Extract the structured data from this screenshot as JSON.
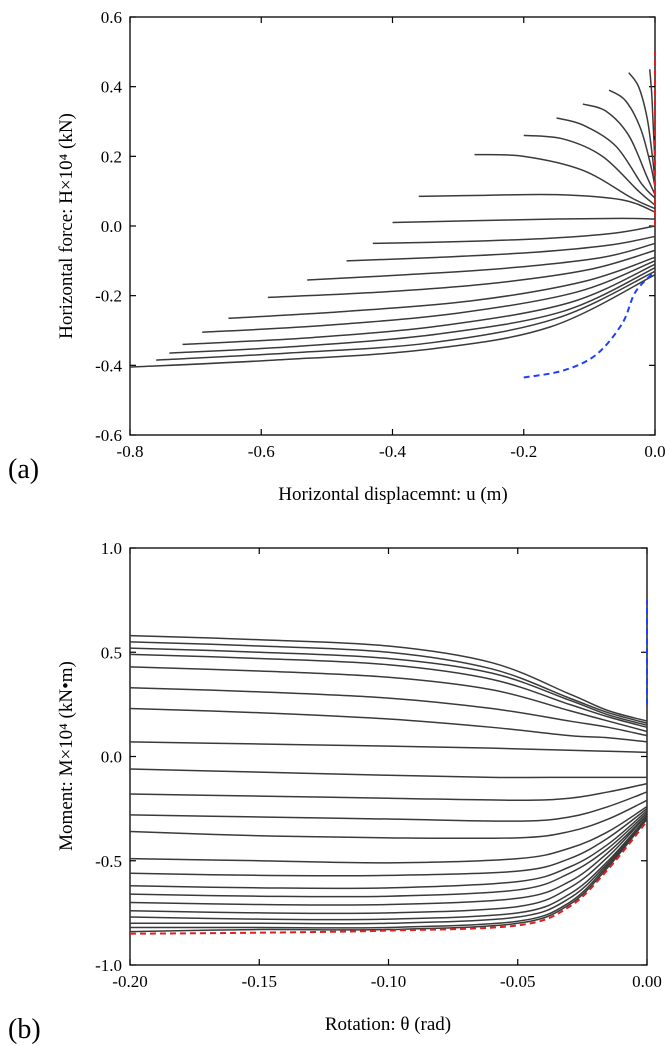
{
  "chart_data": [
    {
      "panel_label": "(a)",
      "type": "line",
      "xlabel": "Horizontal displacemnt: u (m)",
      "ylabel": "Horizontal force: H×10⁴ (kN)",
      "xlim": [
        -0.8,
        0.0
      ],
      "ylim": [
        -0.6,
        0.6
      ],
      "xticks": [
        -0.8,
        -0.6,
        -0.4,
        -0.2,
        0.0
      ],
      "xtick_labels": [
        "-0.8",
        "-0.6",
        "-0.4",
        "-0.2",
        "0.0"
      ],
      "yticks": [
        -0.6,
        -0.4,
        -0.2,
        0.0,
        0.2,
        0.4,
        0.6
      ],
      "ytick_labels": [
        "-0.6",
        "-0.4",
        "-0.2",
        "0.0",
        "0.2",
        "0.4",
        "0.6"
      ],
      "line_color": "#3a3a3a",
      "series": [
        {
          "x": [
            -0.008,
            -0.005,
            -0.003,
            -0.001,
            0.0
          ],
          "y": [
            0.45,
            0.38,
            0.3,
            0.22,
            0.16
          ]
        },
        {
          "x": [
            -0.04,
            -0.025,
            -0.012,
            -0.004,
            0.0
          ],
          "y": [
            0.44,
            0.4,
            0.31,
            0.2,
            0.13
          ]
        },
        {
          "x": [
            -0.07,
            -0.045,
            -0.022,
            -0.006,
            0.0
          ],
          "y": [
            0.39,
            0.36,
            0.28,
            0.17,
            0.11
          ]
        },
        {
          "x": [
            -0.11,
            -0.075,
            -0.04,
            -0.012,
            0.0
          ],
          "y": [
            0.35,
            0.33,
            0.26,
            0.14,
            0.09
          ]
        },
        {
          "x": [
            -0.15,
            -0.11,
            -0.06,
            -0.02,
            0.0
          ],
          "y": [
            0.31,
            0.29,
            0.23,
            0.12,
            0.08
          ]
        },
        {
          "x": [
            -0.2,
            -0.14,
            -0.08,
            -0.025,
            0.0
          ],
          "y": [
            0.26,
            0.25,
            0.2,
            0.1,
            0.06
          ]
        },
        {
          "x": [
            -0.275,
            -0.2,
            -0.11,
            -0.035,
            0.0
          ],
          "y": [
            0.205,
            0.2,
            0.16,
            0.08,
            0.05
          ]
        },
        {
          "x": [
            -0.36,
            -0.26,
            -0.15,
            -0.05,
            0.0
          ],
          "y": [
            0.085,
            0.088,
            0.09,
            0.075,
            0.04
          ]
        },
        {
          "x": [
            -0.4,
            -0.28,
            -0.15,
            -0.05,
            0.0
          ],
          "y": [
            0.01,
            0.015,
            0.02,
            0.022,
            0.02
          ]
        },
        {
          "x": [
            -0.43,
            -0.3,
            -0.16,
            -0.06,
            0.0
          ],
          "y": [
            -0.05,
            -0.045,
            -0.035,
            -0.02,
            0.0
          ]
        },
        {
          "x": [
            -0.47,
            -0.33,
            -0.18,
            -0.07,
            0.0
          ],
          "y": [
            -0.1,
            -0.09,
            -0.075,
            -0.055,
            -0.03
          ]
        },
        {
          "x": [
            -0.53,
            -0.38,
            -0.22,
            -0.08,
            0.0
          ],
          "y": [
            -0.155,
            -0.14,
            -0.12,
            -0.09,
            -0.05
          ]
        },
        {
          "x": [
            -0.59,
            -0.42,
            -0.25,
            -0.1,
            0.0
          ],
          "y": [
            -0.205,
            -0.19,
            -0.165,
            -0.125,
            -0.07
          ]
        },
        {
          "x": [
            -0.65,
            -0.47,
            -0.28,
            -0.11,
            0.0
          ],
          "y": [
            -0.265,
            -0.245,
            -0.215,
            -0.16,
            -0.09
          ]
        },
        {
          "x": [
            -0.69,
            -0.5,
            -0.3,
            -0.12,
            0.0
          ],
          "y": [
            -0.305,
            -0.285,
            -0.25,
            -0.19,
            -0.1
          ]
        },
        {
          "x": [
            -0.72,
            -0.52,
            -0.32,
            -0.13,
            0.0
          ],
          "y": [
            -0.34,
            -0.32,
            -0.285,
            -0.22,
            -0.11
          ]
        },
        {
          "x": [
            -0.74,
            -0.54,
            -0.33,
            -0.14,
            0.0
          ],
          "y": [
            -0.365,
            -0.345,
            -0.31,
            -0.245,
            -0.12
          ]
        },
        {
          "x": [
            -0.76,
            -0.56,
            -0.34,
            -0.15,
            0.0
          ],
          "y": [
            -0.385,
            -0.365,
            -0.335,
            -0.265,
            -0.13
          ]
        },
        {
          "x": [
            -0.8,
            -0.58,
            -0.35,
            -0.16,
            0.0
          ],
          "y": [
            -0.405,
            -0.385,
            -0.355,
            -0.29,
            -0.14
          ]
        }
      ],
      "envelopes": [
        {
          "color": "#1f3fff",
          "dash": "dashed",
          "x": [
            -0.2,
            -0.14,
            -0.09,
            -0.05,
            -0.03,
            0.0
          ],
          "y": [
            -0.435,
            -0.415,
            -0.37,
            -0.28,
            -0.19,
            -0.13
          ]
        },
        {
          "color": "#e02020",
          "dash": "dashed",
          "x": [
            0.0,
            0.0,
            0.0
          ],
          "y": [
            0.0,
            0.25,
            0.5
          ]
        }
      ]
    },
    {
      "panel_label": "(b)",
      "type": "line",
      "xlabel": "Rotation: θ (rad)",
      "ylabel": "Moment: M×10⁴ (kN•m)",
      "xlim": [
        -0.2,
        0.0
      ],
      "ylim": [
        -1.0,
        1.0
      ],
      "xticks": [
        -0.2,
        -0.15,
        -0.1,
        -0.05,
        0.0
      ],
      "xtick_labels": [
        "-0.20",
        "-0.15",
        "-0.10",
        "-0.05",
        "0.00"
      ],
      "yticks": [
        -1.0,
        -0.5,
        0.0,
        0.5,
        1.0
      ],
      "ytick_labels": [
        "-1.0",
        "-0.5",
        "0.0",
        "0.5",
        "1.0"
      ],
      "line_color": "#3a3a3a",
      "series": [
        {
          "x": [
            -0.2,
            -0.15,
            -0.1,
            -0.06,
            -0.03,
            -0.015,
            0.0
          ],
          "y": [
            0.58,
            0.56,
            0.53,
            0.45,
            0.3,
            0.22,
            0.17
          ]
        },
        {
          "x": [
            -0.2,
            -0.15,
            -0.1,
            -0.06,
            -0.03,
            -0.015,
            0.0
          ],
          "y": [
            0.55,
            0.53,
            0.5,
            0.42,
            0.28,
            0.21,
            0.16
          ]
        },
        {
          "x": [
            -0.2,
            -0.15,
            -0.1,
            -0.06,
            -0.03,
            -0.015,
            0.0
          ],
          "y": [
            0.52,
            0.5,
            0.47,
            0.4,
            0.27,
            0.2,
            0.15
          ]
        },
        {
          "x": [
            -0.2,
            -0.15,
            -0.1,
            -0.06,
            -0.03,
            -0.015,
            0.0
          ],
          "y": [
            0.49,
            0.47,
            0.44,
            0.37,
            0.25,
            0.19,
            0.14
          ]
        },
        {
          "x": [
            -0.2,
            -0.15,
            -0.1,
            -0.06,
            -0.03,
            -0.015,
            0.0
          ],
          "y": [
            0.43,
            0.41,
            0.38,
            0.32,
            0.22,
            0.17,
            0.12
          ]
        },
        {
          "x": [
            -0.2,
            -0.15,
            -0.1,
            -0.06,
            -0.03,
            -0.015,
            0.0
          ],
          "y": [
            0.33,
            0.31,
            0.28,
            0.23,
            0.17,
            0.14,
            0.1
          ]
        },
        {
          "x": [
            -0.2,
            -0.15,
            -0.1,
            -0.06,
            -0.03,
            -0.015,
            0.0
          ],
          "y": [
            0.23,
            0.21,
            0.18,
            0.14,
            0.1,
            0.09,
            0.07
          ]
        },
        {
          "x": [
            -0.2,
            -0.15,
            -0.1,
            -0.06,
            -0.03,
            -0.015,
            0.0
          ],
          "y": [
            0.07,
            0.06,
            0.05,
            0.04,
            0.03,
            0.025,
            0.02
          ]
        },
        {
          "x": [
            -0.2,
            -0.15,
            -0.1,
            -0.06,
            -0.03,
            -0.015,
            0.0
          ],
          "y": [
            -0.06,
            -0.075,
            -0.09,
            -0.1,
            -0.1,
            -0.1,
            -0.1
          ]
        },
        {
          "x": [
            -0.2,
            -0.15,
            -0.1,
            -0.05,
            -0.03,
            -0.015,
            0.0
          ],
          "y": [
            -0.18,
            -0.19,
            -0.2,
            -0.21,
            -0.2,
            -0.17,
            -0.13
          ]
        },
        {
          "x": [
            -0.2,
            -0.15,
            -0.1,
            -0.05,
            -0.03,
            -0.015,
            0.0
          ],
          "y": [
            -0.28,
            -0.29,
            -0.3,
            -0.31,
            -0.29,
            -0.24,
            -0.17
          ]
        },
        {
          "x": [
            -0.2,
            -0.15,
            -0.1,
            -0.05,
            -0.03,
            -0.015,
            0.0
          ],
          "y": [
            -0.36,
            -0.38,
            -0.39,
            -0.39,
            -0.36,
            -0.3,
            -0.21
          ]
        },
        {
          "x": [
            -0.2,
            -0.15,
            -0.1,
            -0.05,
            -0.03,
            -0.015,
            0.0
          ],
          "y": [
            -0.49,
            -0.5,
            -0.51,
            -0.49,
            -0.44,
            -0.36,
            -0.24
          ]
        },
        {
          "x": [
            -0.2,
            -0.15,
            -0.1,
            -0.05,
            -0.03,
            -0.015,
            0.0
          ],
          "y": [
            -0.56,
            -0.57,
            -0.57,
            -0.55,
            -0.49,
            -0.39,
            -0.25
          ]
        },
        {
          "x": [
            -0.2,
            -0.15,
            -0.1,
            -0.05,
            -0.03,
            -0.015,
            0.0
          ],
          "y": [
            -0.62,
            -0.63,
            -0.63,
            -0.6,
            -0.53,
            -0.42,
            -0.26
          ]
        },
        {
          "x": [
            -0.2,
            -0.15,
            -0.1,
            -0.05,
            -0.03,
            -0.015,
            0.0
          ],
          "y": [
            -0.66,
            -0.67,
            -0.67,
            -0.64,
            -0.56,
            -0.44,
            -0.27
          ]
        },
        {
          "x": [
            -0.2,
            -0.15,
            -0.1,
            -0.05,
            -0.03,
            -0.015,
            0.0
          ],
          "y": [
            -0.7,
            -0.71,
            -0.71,
            -0.68,
            -0.6,
            -0.46,
            -0.28
          ]
        },
        {
          "x": [
            -0.2,
            -0.15,
            -0.1,
            -0.05,
            -0.03,
            -0.015,
            0.0
          ],
          "y": [
            -0.74,
            -0.75,
            -0.75,
            -0.72,
            -0.63,
            -0.48,
            -0.28
          ]
        },
        {
          "x": [
            -0.2,
            -0.15,
            -0.1,
            -0.05,
            -0.03,
            -0.015,
            0.0
          ],
          "y": [
            -0.77,
            -0.78,
            -0.78,
            -0.75,
            -0.66,
            -0.5,
            -0.29
          ]
        },
        {
          "x": [
            -0.2,
            -0.15,
            -0.1,
            -0.05,
            -0.03,
            -0.015,
            0.0
          ],
          "y": [
            -0.8,
            -0.8,
            -0.8,
            -0.77,
            -0.68,
            -0.51,
            -0.29
          ]
        },
        {
          "x": [
            -0.2,
            -0.15,
            -0.1,
            -0.05,
            -0.03,
            -0.015,
            0.0
          ],
          "y": [
            -0.82,
            -0.82,
            -0.82,
            -0.79,
            -0.7,
            -0.52,
            -0.3
          ]
        },
        {
          "x": [
            -0.2,
            -0.15,
            -0.1,
            -0.05,
            -0.03,
            -0.015,
            0.0
          ],
          "y": [
            -0.84,
            -0.83,
            -0.83,
            -0.8,
            -0.71,
            -0.53,
            -0.3
          ]
        }
      ],
      "envelopes": [
        {
          "color": "#e02020",
          "dash": "dashed",
          "x": [
            -0.2,
            -0.15,
            -0.1,
            -0.05,
            -0.03,
            -0.015,
            0.0
          ],
          "y": [
            -0.85,
            -0.845,
            -0.835,
            -0.81,
            -0.72,
            -0.54,
            -0.31
          ]
        },
        {
          "color": "#1f3fff",
          "dash": "dashed",
          "x": [
            0.0,
            0.0,
            0.0
          ],
          "y": [
            0.25,
            0.5,
            0.75
          ]
        }
      ]
    }
  ]
}
